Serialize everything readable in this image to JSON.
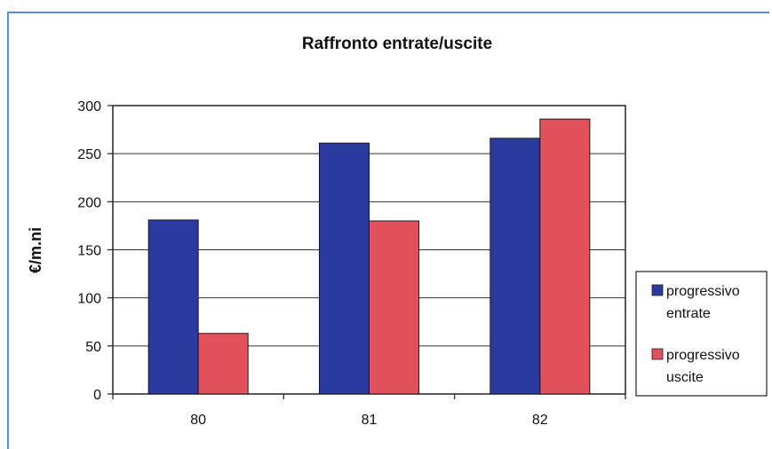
{
  "chart_data": {
    "type": "bar",
    "title": "Raffronto entrate/uscite",
    "xlabel": "",
    "ylabel": "€/m.ni",
    "categories": [
      "80",
      "81",
      "82"
    ],
    "ylim": [
      0,
      300
    ],
    "yticks": [
      0,
      50,
      100,
      150,
      200,
      250,
      300
    ],
    "grid": true,
    "legend_position": "right",
    "series": [
      {
        "name": "progressivo entrate",
        "legend_lines": [
          "progressivo",
          "entrate"
        ],
        "color": "#2b3a9e",
        "values": [
          181,
          261,
          266
        ]
      },
      {
        "name": "progressivo uscite",
        "legend_lines": [
          "progressivo",
          "uscite"
        ],
        "color": "#e0515b",
        "values": [
          63,
          180,
          286
        ]
      }
    ]
  }
}
